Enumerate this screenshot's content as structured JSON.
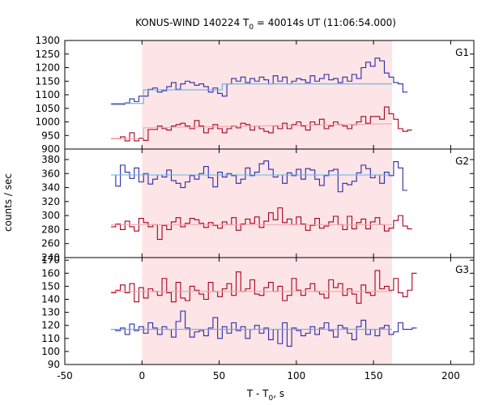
{
  "title_main": "KONUS-WIND 140224 T",
  "title_sub": "0",
  "title_rest": " = 40014s UT (11:06:54.000)",
  "xlabel_main": "T - T",
  "xlabel_sub": "0",
  "xlabel_rest": ", s",
  "ylabel": "counts / sec",
  "colors": {
    "shade": "#fde4e6",
    "blue_hist": "#2a2aa8",
    "blue_fit": "#5fb6e8",
    "red_hist": "#a8001e",
    "red_fit": "#f2a3ae",
    "frame": "#000000"
  },
  "chart_data": {
    "type": "line",
    "x_axis": {
      "min": -50,
      "max": 215,
      "ticks": [
        -50,
        0,
        50,
        100,
        150,
        200
      ]
    },
    "shaded_interval": [
      0,
      162
    ],
    "panels": [
      {
        "name": "G1",
        "ylim": [
          900,
          1300
        ],
        "yticks": [
          900,
          950,
          1000,
          1050,
          1100,
          1150,
          1200,
          1250,
          1300
        ],
        "series": [
          {
            "color": "blue",
            "x0": -20,
            "bin": 3,
            "values": [
              1065,
              1065,
              1065,
              1070,
              1085,
              1075,
              1095,
              1095,
              1120,
              1125,
              1110,
              1115,
              1130,
              1145,
              1120,
              1140,
              1150,
              1145,
              1135,
              1140,
              1130,
              1110,
              1125,
              1105,
              1095,
              1140,
              1160,
              1150,
              1165,
              1145,
              1160,
              1150,
              1165,
              1155,
              1140,
              1170,
              1150,
              1165,
              1140,
              1150,
              1160,
              1155,
              1145,
              1170,
              1150,
              1160,
              1175,
              1155,
              1160,
              1145,
              1165,
              1150,
              1175,
              1160,
              1200,
              1220,
              1205,
              1235,
              1225,
              1180,
              1165,
              1145,
              1140,
              1110
            ],
            "fit": [
              [
                -20,
                1068
              ],
              [
                1,
                1068
              ],
              [
                1,
                1118
              ],
              [
                52,
                1118
              ],
              [
                52,
                1140
              ],
              [
                162,
                1140
              ]
            ]
          },
          {
            "color": "red",
            "x0": -20,
            "bin": 3,
            "values": [
              938,
              938,
              945,
              930,
              960,
              930,
              940,
              932,
              972,
              972,
              985,
              975,
              970,
              985,
              990,
              995,
              985,
              975,
              1005,
              985,
              960,
              975,
              990,
              975,
              960,
              975,
              985,
              978,
              995,
              990,
              970,
              985,
              975,
              965,
              960,
              985,
              975,
              995,
              975,
              990,
              1000,
              985,
              970,
              1000,
              990,
              1010,
              975,
              985,
              1000,
              990,
              985,
              975,
              990,
              1000,
              1020,
              995,
              1020,
              1020,
              1010,
              1055,
              1030,
              1010,
              975,
              965,
              970
            ],
            "fit": [
              [
                -20,
                938
              ],
              [
                1,
                938
              ],
              [
                1,
                978
              ],
              [
                162,
                993
              ]
            ]
          }
        ]
      },
      {
        "name": "G2",
        "ylim": [
          240,
          395
        ],
        "yticks": [
          240,
          260,
          280,
          300,
          320,
          340,
          360,
          380
        ],
        "series": [
          {
            "color": "blue",
            "x0": -20,
            "bin": 3,
            "values": [
              358,
              342,
              372,
              362,
              353,
              368,
              348,
              360,
              345,
              352,
              358,
              355,
              365,
              350,
              346,
              340,
              348,
              357,
              352,
              360,
              370,
              354,
              341,
              362,
              355,
              360,
              357,
              346,
              352,
              368,
              357,
              362,
              374,
              378,
              366,
              355,
              358,
              346,
              361,
              357,
              366,
              352,
              367,
              365,
              352,
              343,
              357,
              364,
              366,
              334,
              346,
              344,
              349,
              361,
              372,
              367,
              354,
              358,
              346,
              362,
              357,
              377,
              368,
              336
            ],
            "fit": [
              [
                -20,
                358
              ],
              [
                162,
                358
              ]
            ]
          },
          {
            "color": "red",
            "x0": -20,
            "bin": 3,
            "values": [
              284,
              288,
              280,
              292,
              284,
              278,
              296,
              290,
              284,
              287,
              266,
              286,
              280,
              291,
              297,
              284,
              289,
              296,
              294,
              289,
              283,
              290,
              286,
              282,
              291,
              287,
              297,
              279,
              288,
              295,
              289,
              298,
              283,
              292,
              304,
              294,
              311,
              290,
              295,
              287,
              298,
              288,
              279,
              286,
              296,
              282,
              285,
              291,
              299,
              287,
              280,
              299,
              281,
              290,
              295,
              281,
              291,
              297,
              287,
              278,
              282,
              293,
              300,
              285,
              281
            ],
            "fit": [
              [
                -20,
                287
              ],
              [
                162,
                287
              ]
            ]
          }
        ]
      },
      {
        "name": "G3",
        "ylim": [
          90,
          172
        ],
        "yticks": [
          90,
          100,
          110,
          120,
          130,
          140,
          150,
          160,
          170
        ],
        "series": [
          {
            "color": "red",
            "x0": -20,
            "bin": 3,
            "values": [
              145,
              147,
              151,
              145,
              152,
              138,
              149,
              141,
              148,
              146,
              143,
              156,
              145,
              138,
              153,
              141,
              139,
              150,
              147,
              144,
              140,
              153,
              146,
              142,
              148,
              152,
              143,
              161,
              146,
              148,
              155,
              144,
              143,
              149,
              153,
              146,
              150,
              139,
              143,
              156,
              147,
              143,
              148,
              152,
              146,
              144,
              141,
              155,
              149,
              152,
              143,
              148,
              144,
              137,
              151,
              145,
              143,
              162,
              148,
              150,
              147,
              156,
              145,
              142,
              147,
              160
            ],
            "fit": [
              [
                -20,
                146
              ],
              [
                162,
                146
              ]
            ]
          },
          {
            "color": "blue",
            "x0": -20,
            "bin": 3,
            "values": [
              117,
              116,
              118,
              113,
              121,
              116,
              119,
              114,
              122,
              118,
              113,
              119,
              117,
              111,
              123,
              131,
              118,
              111,
              115,
              116,
              112,
              118,
              126,
              110,
              119,
              114,
              122,
              116,
              119,
              110,
              117,
              120,
              114,
              118,
              109,
              117,
              106,
              122,
              104,
              118,
              116,
              112,
              114,
              119,
              113,
              118,
              122,
              116,
              111,
              120,
              118,
              114,
              109,
              119,
              124,
              113,
              117,
              112,
              118,
              120,
              113,
              115,
              122,
              117,
              117,
              118
            ],
            "fit": [
              [
                -20,
                117
              ],
              [
                162,
                117
              ]
            ]
          }
        ]
      }
    ]
  }
}
